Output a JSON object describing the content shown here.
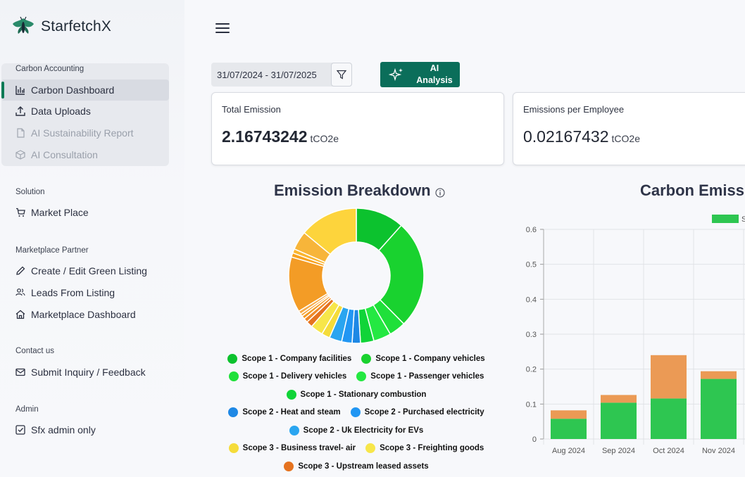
{
  "app": {
    "name": "StarfetchX"
  },
  "sidebar": {
    "sections": [
      {
        "title": "Carbon Accounting",
        "items": [
          {
            "label": "Carbon Dashboard",
            "icon": "bar-chart-icon",
            "active": true
          },
          {
            "label": "Data Uploads",
            "icon": "upload-icon"
          },
          {
            "label": "AI Sustainability Report",
            "icon": "document-icon",
            "disabled": true
          },
          {
            "label": "AI Consultation",
            "icon": "cube-icon",
            "disabled": true
          }
        ]
      },
      {
        "title": "Solution",
        "items": [
          {
            "label": "Market Place",
            "icon": "cart-icon"
          }
        ]
      },
      {
        "title": "Marketplace Partner",
        "items": [
          {
            "label": "Create / Edit Green Listing",
            "icon": "pencil-icon"
          },
          {
            "label": "Leads From Listing",
            "icon": "users-icon"
          },
          {
            "label": "Marketplace Dashboard",
            "icon": "home-icon"
          }
        ]
      },
      {
        "title": "Contact us",
        "items": [
          {
            "label": "Submit Inquiry / Feedback",
            "icon": "mail-icon"
          }
        ]
      },
      {
        "title": "Admin",
        "items": [
          {
            "label": "Sfx admin only",
            "icon": "checkbox-icon"
          }
        ]
      }
    ]
  },
  "toolbar": {
    "date_range": "31/07/2024 - 31/07/2025",
    "ai_button_label_line1": "AI",
    "ai_button_label_line2": "Analysis"
  },
  "cards": {
    "total": {
      "title": "Total Emission",
      "value": "2.16743242",
      "unit": "tCO2e"
    },
    "per_employee": {
      "title": "Emissions per Employee",
      "value": "0.02167432",
      "unit": "tCO2e"
    }
  },
  "colors": {
    "accent": "#0b6e5a",
    "scope2": "#2196f3",
    "scope3_orange": "#f39c26"
  },
  "chart_data": [
    {
      "type": "pie",
      "title": "Emission Breakdown",
      "slices": [
        {
          "label": "Scope 1 - Company facilities",
          "value": 11.6,
          "color": "#0cc22e"
        },
        {
          "label": "Scope 1 - Company vehicles",
          "value": 26.0,
          "color": "#19d22f"
        },
        {
          "label": "Scope 1 - Delivery vehicles",
          "value": 4.0,
          "color": "#1fe03a"
        },
        {
          "label": "Scope 1 - Passenger vehicles",
          "value": 4.2,
          "color": "#24e842"
        },
        {
          "label": "Scope 1 - Stationary combustion",
          "value": 3.2,
          "color": "#10d438"
        },
        {
          "label": "Scope 2 - Heat and steam",
          "value": 2.0,
          "color": "#1e88e5"
        },
        {
          "label": "Scope 2 - Purchased electricity",
          "value": 2.5,
          "color": "#2196f3"
        },
        {
          "label": "Scope 2 - Uk Electricity for EVs",
          "value": 3.0,
          "color": "#2aa5f0"
        },
        {
          "label": "Scope 3 - Business travel- air",
          "value": 2.0,
          "color": "#f5dc3a"
        },
        {
          "label": "Scope 3 - Freighting goods",
          "value": 3.0,
          "color": "#f7e64a"
        },
        {
          "label": "Scope 3 - Upstream leased assets",
          "value": 1.5,
          "color": "#e57320"
        },
        {
          "label": "",
          "value": 1.0,
          "color": "#ef8a2a"
        },
        {
          "label": "",
          "value": 0.8,
          "color": "#f39c26"
        },
        {
          "label": "",
          "value": 0.6,
          "color": "#f5a43a"
        },
        {
          "label": "",
          "value": 0.8,
          "color": "#f7ac4a"
        },
        {
          "label": "",
          "value": 13.3,
          "color": "#f39c26"
        },
        {
          "label": "",
          "value": 1.0,
          "color": "#f8a21e"
        },
        {
          "label": "",
          "value": 1.0,
          "color": "#fbb62f"
        },
        {
          "label": "",
          "value": 4.5,
          "color": "#f7b53a"
        },
        {
          "label": "",
          "value": 14.0,
          "color": "#fdd43c"
        }
      ]
    },
    {
      "type": "bar",
      "title": "Carbon Emissi",
      "categories": [
        "Aug 2024",
        "Sep 2024",
        "Oct 2024",
        "Nov 2024"
      ],
      "series": [
        {
          "values": [
            0.058,
            0.104,
            0.116,
            0.172
          ],
          "color": "#2ec651"
        },
        {
          "values": [
            0.024,
            0.022,
            0.124,
            0.022
          ],
          "color": "#eb9a55"
        }
      ],
      "ylim": [
        0,
        0.6
      ],
      "yticks": [
        "0",
        "0.1",
        "0.2",
        "0.3",
        "0.4",
        "0.5",
        "0.6"
      ],
      "legend_partial": "S",
      "grid": true
    }
  ]
}
